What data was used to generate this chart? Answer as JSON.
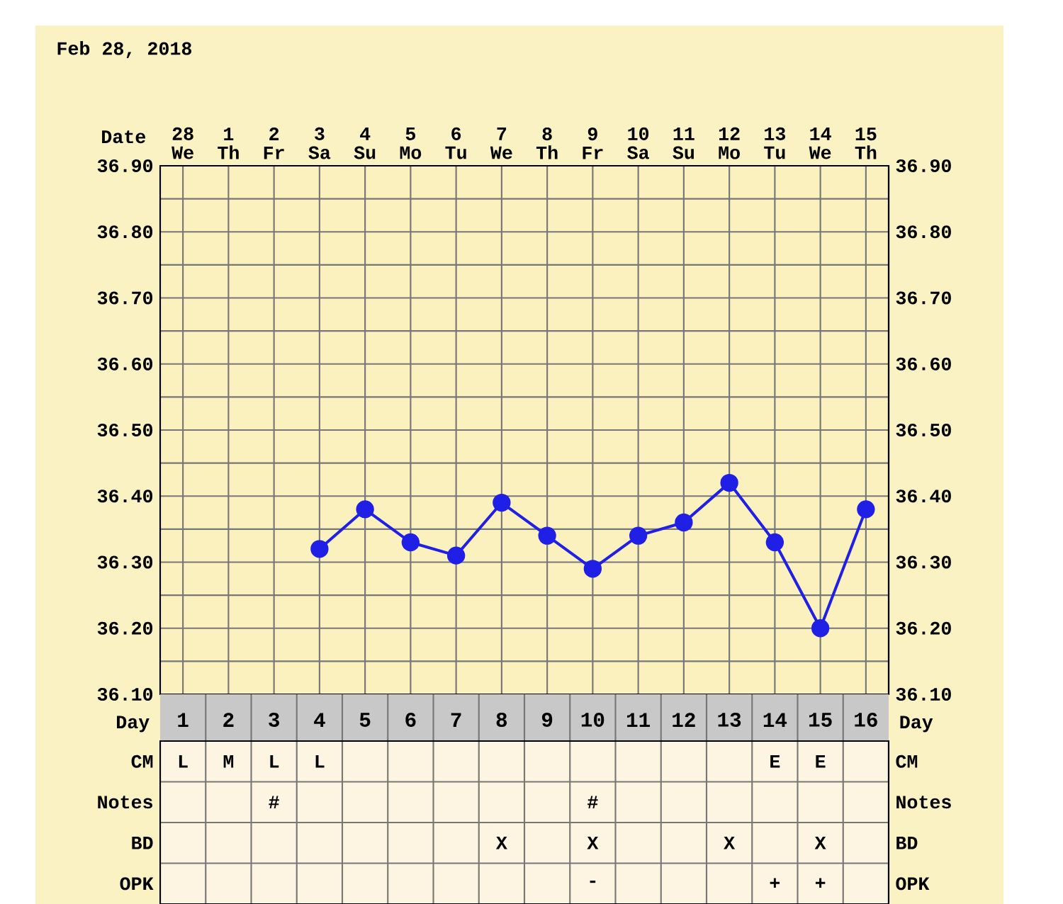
{
  "chart_data": [
    {
      "type": "line",
      "title": "Feb 28, 2018",
      "xlabel": "Date",
      "categories": [
        "28 We",
        "1 Th",
        "2 Fr",
        "3 Sa",
        "4 Su",
        "5 Mo",
        "6 Tu",
        "7 We",
        "8 Th",
        "9 Fr",
        "10 Sa",
        "11 Su",
        "12 Mo",
        "13 Tu",
        "14 We",
        "15 Th"
      ],
      "series": [
        {
          "color": "#1f1fe6",
          "values": [
            null,
            null,
            null,
            36.32,
            36.38,
            36.33,
            36.31,
            36.39,
            36.34,
            36.29,
            36.34,
            36.36,
            36.42,
            36.33,
            36.2,
            36.38
          ]
        }
      ],
      "ylim": [
        36.1,
        36.9
      ],
      "yticks": [
        {
          "value": 36.1,
          "label": "36.10"
        },
        {
          "value": 36.2,
          "label": "36.20"
        },
        {
          "value": 36.3,
          "label": "36.30"
        },
        {
          "value": 36.4,
          "label": "36.40"
        },
        {
          "value": 36.5,
          "label": "36.50"
        },
        {
          "value": 36.6,
          "label": "36.60"
        },
        {
          "value": 36.7,
          "label": "36.70"
        },
        {
          "value": 36.8,
          "label": "36.80"
        },
        {
          "value": 36.9,
          "label": "36.90"
        }
      ],
      "y2lim": [
        36.1,
        36.9
      ],
      "y2ticks": [
        {
          "value": 36.1,
          "label": "36.10"
        },
        {
          "value": 36.2,
          "label": "36.20"
        },
        {
          "value": 36.3,
          "label": "36.30"
        },
        {
          "value": 36.4,
          "label": "36.40"
        },
        {
          "value": 36.5,
          "label": "36.50"
        },
        {
          "value": 36.6,
          "label": "36.60"
        },
        {
          "value": 36.7,
          "label": "36.70"
        },
        {
          "value": 36.8,
          "label": "36.80"
        },
        {
          "value": 36.9,
          "label": "36.90"
        }
      ],
      "grid": true,
      "marker": "circle",
      "line_style": "solid"
    },
    {
      "type": "heatmap",
      "xlabel": "Day",
      "categories": [
        "1",
        "2",
        "3",
        "4",
        "5",
        "6",
        "7",
        "8",
        "9",
        "10",
        "11",
        "12",
        "13",
        "14",
        "15",
        "16"
      ],
      "y_categories": [
        "CM",
        "Notes",
        "BD",
        "OPK"
      ],
      "y2_categories": [
        "CM",
        "Notes",
        "BD",
        "OPK"
      ],
      "cells": [
        [
          null,
          null,
          null,
          null,
          null,
          null,
          null,
          null,
          null,
          null,
          null,
          null,
          null,
          null,
          null,
          null
        ],
        [
          null,
          null,
          null,
          null,
          null,
          null,
          null,
          null,
          null,
          null,
          null,
          null,
          null,
          null,
          null,
          null
        ],
        [
          null,
          null,
          null,
          null,
          null,
          null,
          null,
          null,
          null,
          null,
          null,
          null,
          null,
          null,
          null,
          null
        ],
        [
          null,
          null,
          null,
          null,
          null,
          null,
          null,
          null,
          null,
          null,
          null,
          null,
          null,
          null,
          null,
          null
        ]
      ],
      "cell_labels": [
        [
          "L",
          "M",
          "L",
          "L",
          null,
          null,
          null,
          null,
          null,
          null,
          null,
          null,
          null,
          "E",
          "E",
          null
        ],
        [
          null,
          null,
          "#",
          null,
          null,
          null,
          null,
          null,
          null,
          "#",
          null,
          null,
          null,
          null,
          null,
          null
        ],
        [
          null,
          null,
          null,
          null,
          null,
          null,
          null,
          "X",
          null,
          "X",
          null,
          null,
          "X",
          null,
          "X",
          null
        ],
        [
          null,
          null,
          null,
          null,
          null,
          null,
          null,
          null,
          null,
          "-",
          null,
          null,
          null,
          "+",
          "+",
          null
        ]
      ],
      "grid": true
    }
  ]
}
